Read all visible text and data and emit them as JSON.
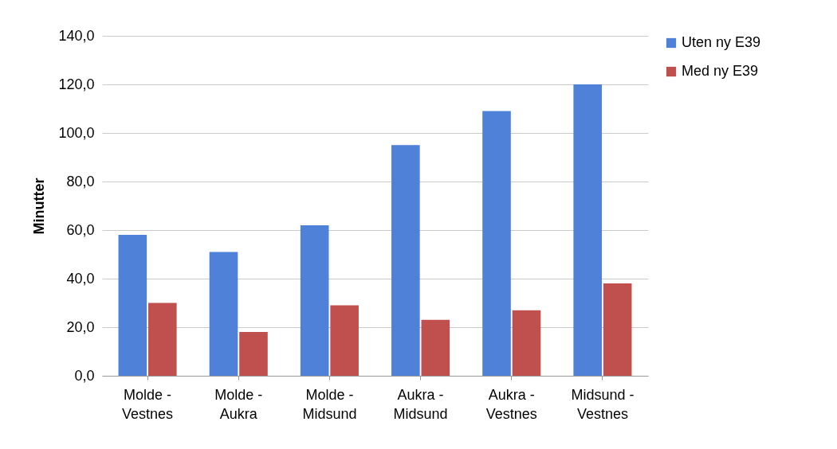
{
  "chart_data": {
    "type": "bar",
    "ylabel": "Minutter",
    "categories": [
      "Molde - Vestnes",
      "Molde - Aukra",
      "Molde - Midsund",
      "Aukra - Midsund",
      "Aukra - Vestnes",
      "Midsund - Vestnes"
    ],
    "series": [
      {
        "name": "Uten ny E39",
        "color": "#4f81d8",
        "values": [
          58,
          51,
          62,
          95,
          109,
          120
        ]
      },
      {
        "name": "Med ny E39",
        "color": "#c0504d",
        "values": [
          30,
          18,
          29,
          23,
          27,
          38
        ]
      }
    ],
    "ylim": [
      0,
      140
    ],
    "yticks": [
      {
        "value": 0,
        "label": "0,0"
      },
      {
        "value": 20,
        "label": "20,0"
      },
      {
        "value": 40,
        "label": "40,0"
      },
      {
        "value": 60,
        "label": "60,0"
      },
      {
        "value": 80,
        "label": "80,0"
      },
      {
        "value": 100,
        "label": "100,0"
      },
      {
        "value": 120,
        "label": "120,0"
      },
      {
        "value": 140,
        "label": "140,0"
      }
    ],
    "grid": "y",
    "legend": "right"
  }
}
